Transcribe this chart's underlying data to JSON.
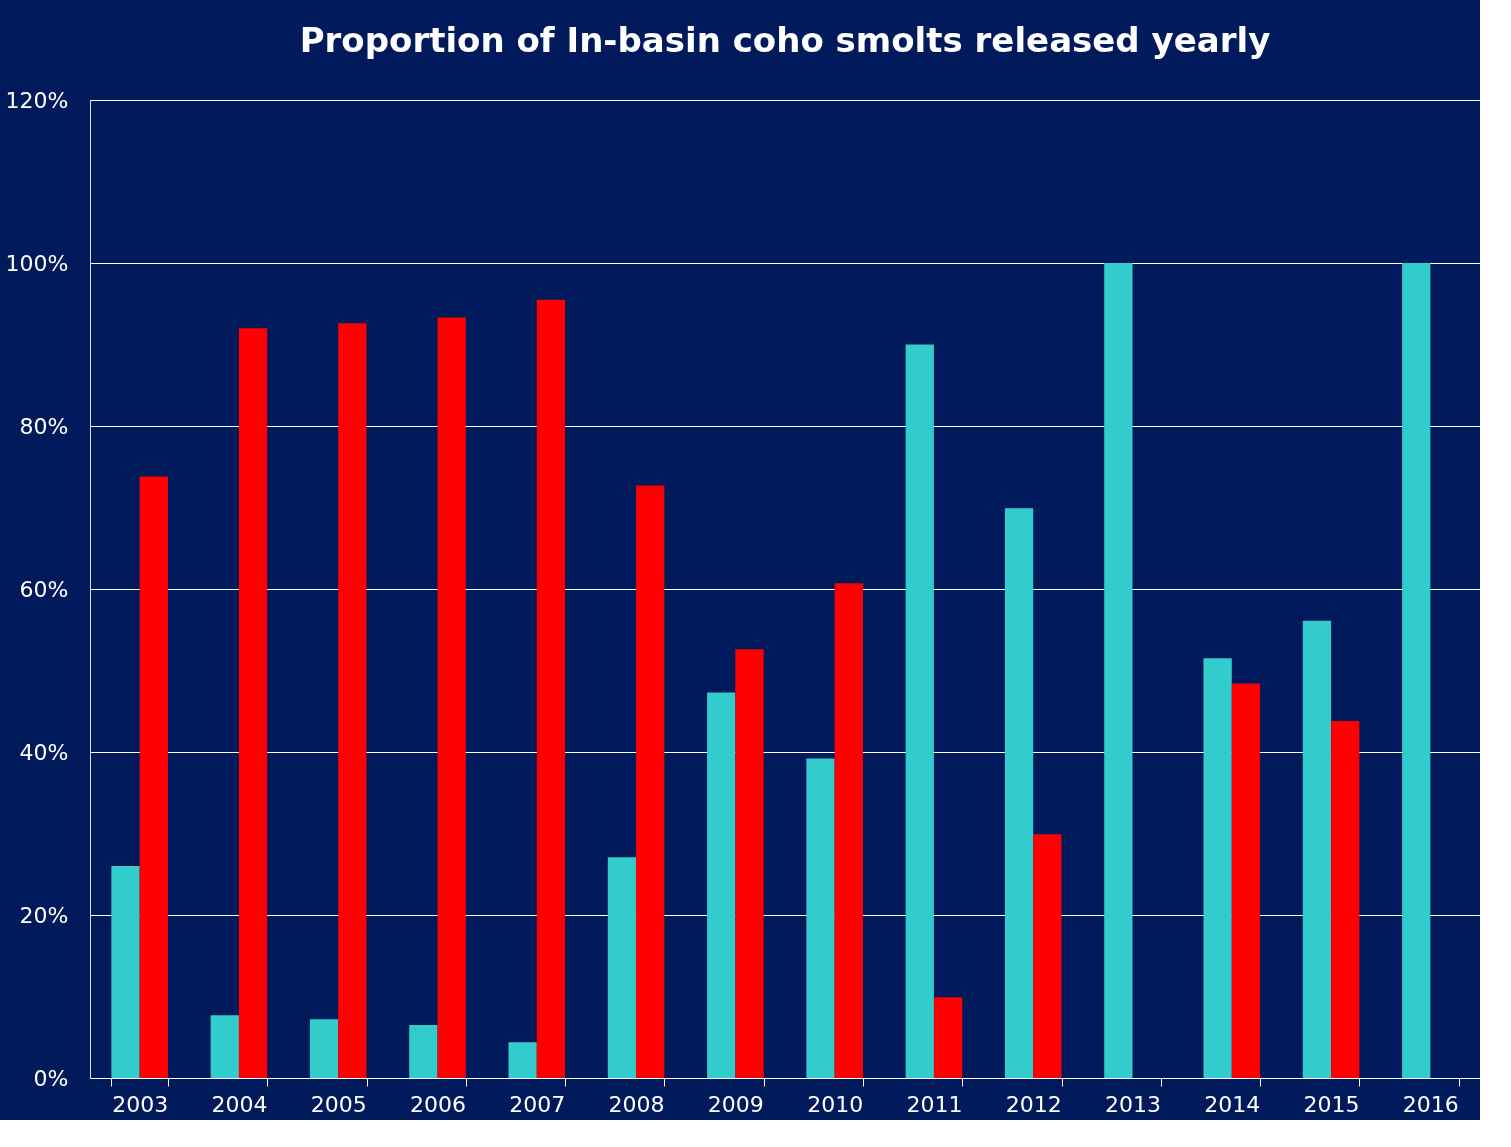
{
  "chart_data": {
    "type": "bar",
    "title": "Proportion of In-basin coho smolts released yearly",
    "categories": [
      "2003",
      "2004",
      "2005",
      "2006",
      "2007",
      "2008",
      "2009",
      "2010",
      "2011",
      "2012",
      "2013",
      "2014",
      "2015",
      "2016"
    ],
    "series": [
      {
        "color": "#33cccc",
        "values": [
          26.0,
          7.7,
          7.2,
          6.5,
          4.4,
          27.1,
          47.3,
          39.2,
          90.0,
          69.9,
          100,
          51.5,
          56.1,
          100
        ]
      },
      {
        "color": "#ff0000",
        "values": [
          73.8,
          92.0,
          92.6,
          93.3,
          95.5,
          72.7,
          52.6,
          60.7,
          9.9,
          29.9,
          null,
          48.4,
          43.8,
          null
        ]
      }
    ],
    "ylim": [
      0,
      120
    ],
    "yticks": [
      {
        "value": 0,
        "label": "0%"
      },
      {
        "value": 20,
        "label": "20%"
      },
      {
        "value": 40,
        "label": "40%"
      },
      {
        "value": 60,
        "label": "60%"
      },
      {
        "value": 80,
        "label": "80%"
      },
      {
        "value": 100,
        "label": "100%"
      },
      {
        "value": 120,
        "label": "120%"
      }
    ],
    "grid": "y",
    "legend": false
  }
}
